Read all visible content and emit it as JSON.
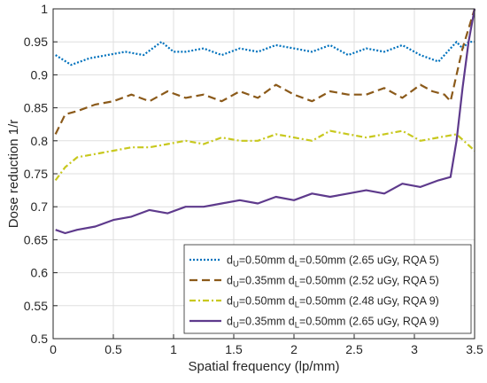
{
  "chart_data": {
    "type": "line",
    "xlabel": "Spatial frequency (lp/mm)",
    "ylabel": "Dose reduction 1/r",
    "xlim": [
      0,
      3.5
    ],
    "ylim": [
      0.5,
      1
    ],
    "xticks": [
      "0",
      "0.5",
      "1",
      "1.5",
      "2",
      "2.5",
      "3",
      "3.5"
    ],
    "yticks": [
      "0.5",
      "0.55",
      "0.6",
      "0.65",
      "0.7",
      "0.75",
      "0.8",
      "0.85",
      "0.9",
      "0.95",
      "1"
    ],
    "grid": true,
    "legend_position": "bottom-right",
    "series": [
      {
        "name": "dU=0.50mm dL=0.50mm (2.65 uGy, RQA 5)",
        "name_parts": {
          "a": "d",
          "a_sub": "U",
          "b": "=0.50mm d",
          "b_sub": "L",
          "c": "=0.50mm (2.65 uGy, RQA 5)"
        },
        "color": "#0072BD",
        "dash": "2,2",
        "x": [
          0.02,
          0.15,
          0.3,
          0.45,
          0.6,
          0.75,
          0.9,
          1.0,
          1.1,
          1.25,
          1.4,
          1.55,
          1.7,
          1.85,
          2.0,
          2.15,
          2.3,
          2.45,
          2.6,
          2.75,
          2.9,
          3.05,
          3.2,
          3.3,
          3.35,
          3.4,
          3.45,
          3.5
        ],
        "y": [
          0.93,
          0.915,
          0.925,
          0.93,
          0.935,
          0.93,
          0.95,
          0.935,
          0.935,
          0.94,
          0.93,
          0.94,
          0.935,
          0.945,
          0.94,
          0.935,
          0.945,
          0.93,
          0.94,
          0.935,
          0.945,
          0.93,
          0.92,
          0.94,
          0.95,
          0.94,
          0.95,
          0.95
        ]
      },
      {
        "name": "dU=0.35mm dL=0.50mm (2.52 uGy, RQA 5)",
        "name_parts": {
          "a": "d",
          "a_sub": "U",
          "b": "=0.35mm d",
          "b_sub": "L",
          "c": "=0.50mm (2.52 uGy, RQA 5)"
        },
        "color": "#8B5A1A",
        "dash": "9,5",
        "x": [
          0.02,
          0.1,
          0.2,
          0.35,
          0.5,
          0.65,
          0.8,
          0.95,
          1.1,
          1.25,
          1.4,
          1.55,
          1.7,
          1.85,
          2.0,
          2.15,
          2.3,
          2.45,
          2.6,
          2.75,
          2.9,
          3.05,
          3.15,
          3.25,
          3.3,
          3.35,
          3.4,
          3.45,
          3.5
        ],
        "y": [
          0.81,
          0.84,
          0.845,
          0.855,
          0.86,
          0.87,
          0.86,
          0.875,
          0.865,
          0.87,
          0.86,
          0.875,
          0.865,
          0.885,
          0.87,
          0.86,
          0.875,
          0.87,
          0.87,
          0.88,
          0.865,
          0.885,
          0.875,
          0.87,
          0.86,
          0.9,
          0.94,
          0.97,
          1.0
        ]
      },
      {
        "name": "dU=0.50mm dL=0.50mm (2.48 uGy, RQA 9)",
        "name_parts": {
          "a": "d",
          "a_sub": "U",
          "b": "=0.50mm d",
          "b_sub": "L",
          "c": "=0.50mm (2.48 uGy, RQA 9)"
        },
        "color": "#C8C81E",
        "dash": "7,3,2,3",
        "x": [
          0.02,
          0.1,
          0.2,
          0.35,
          0.5,
          0.65,
          0.8,
          0.95,
          1.1,
          1.25,
          1.4,
          1.55,
          1.7,
          1.85,
          2.0,
          2.15,
          2.3,
          2.45,
          2.6,
          2.75,
          2.9,
          3.05,
          3.2,
          3.35,
          3.5
        ],
        "y": [
          0.74,
          0.76,
          0.775,
          0.78,
          0.785,
          0.79,
          0.79,
          0.795,
          0.8,
          0.795,
          0.805,
          0.8,
          0.8,
          0.81,
          0.805,
          0.8,
          0.815,
          0.81,
          0.805,
          0.81,
          0.815,
          0.8,
          0.805,
          0.81,
          0.785
        ]
      },
      {
        "name": "dU=0.35mm dL=0.50mm (2.65 uGy, RQA 9)",
        "name_parts": {
          "a": "d",
          "a_sub": "U",
          "b": "=0.35mm d",
          "b_sub": "L",
          "c": "=0.50mm (2.65 uGy, RQA 9)"
        },
        "color": "#5E3A8C",
        "dash": "",
        "x": [
          0.02,
          0.1,
          0.2,
          0.35,
          0.5,
          0.65,
          0.8,
          0.95,
          1.1,
          1.25,
          1.4,
          1.55,
          1.7,
          1.85,
          2.0,
          2.15,
          2.3,
          2.45,
          2.6,
          2.75,
          2.9,
          3.05,
          3.2,
          3.3,
          3.35,
          3.4,
          3.45,
          3.5
        ],
        "y": [
          0.665,
          0.66,
          0.665,
          0.67,
          0.68,
          0.685,
          0.695,
          0.69,
          0.7,
          0.7,
          0.705,
          0.71,
          0.705,
          0.715,
          0.71,
          0.72,
          0.715,
          0.72,
          0.725,
          0.72,
          0.735,
          0.73,
          0.74,
          0.745,
          0.8,
          0.88,
          0.95,
          1.0
        ]
      }
    ]
  }
}
